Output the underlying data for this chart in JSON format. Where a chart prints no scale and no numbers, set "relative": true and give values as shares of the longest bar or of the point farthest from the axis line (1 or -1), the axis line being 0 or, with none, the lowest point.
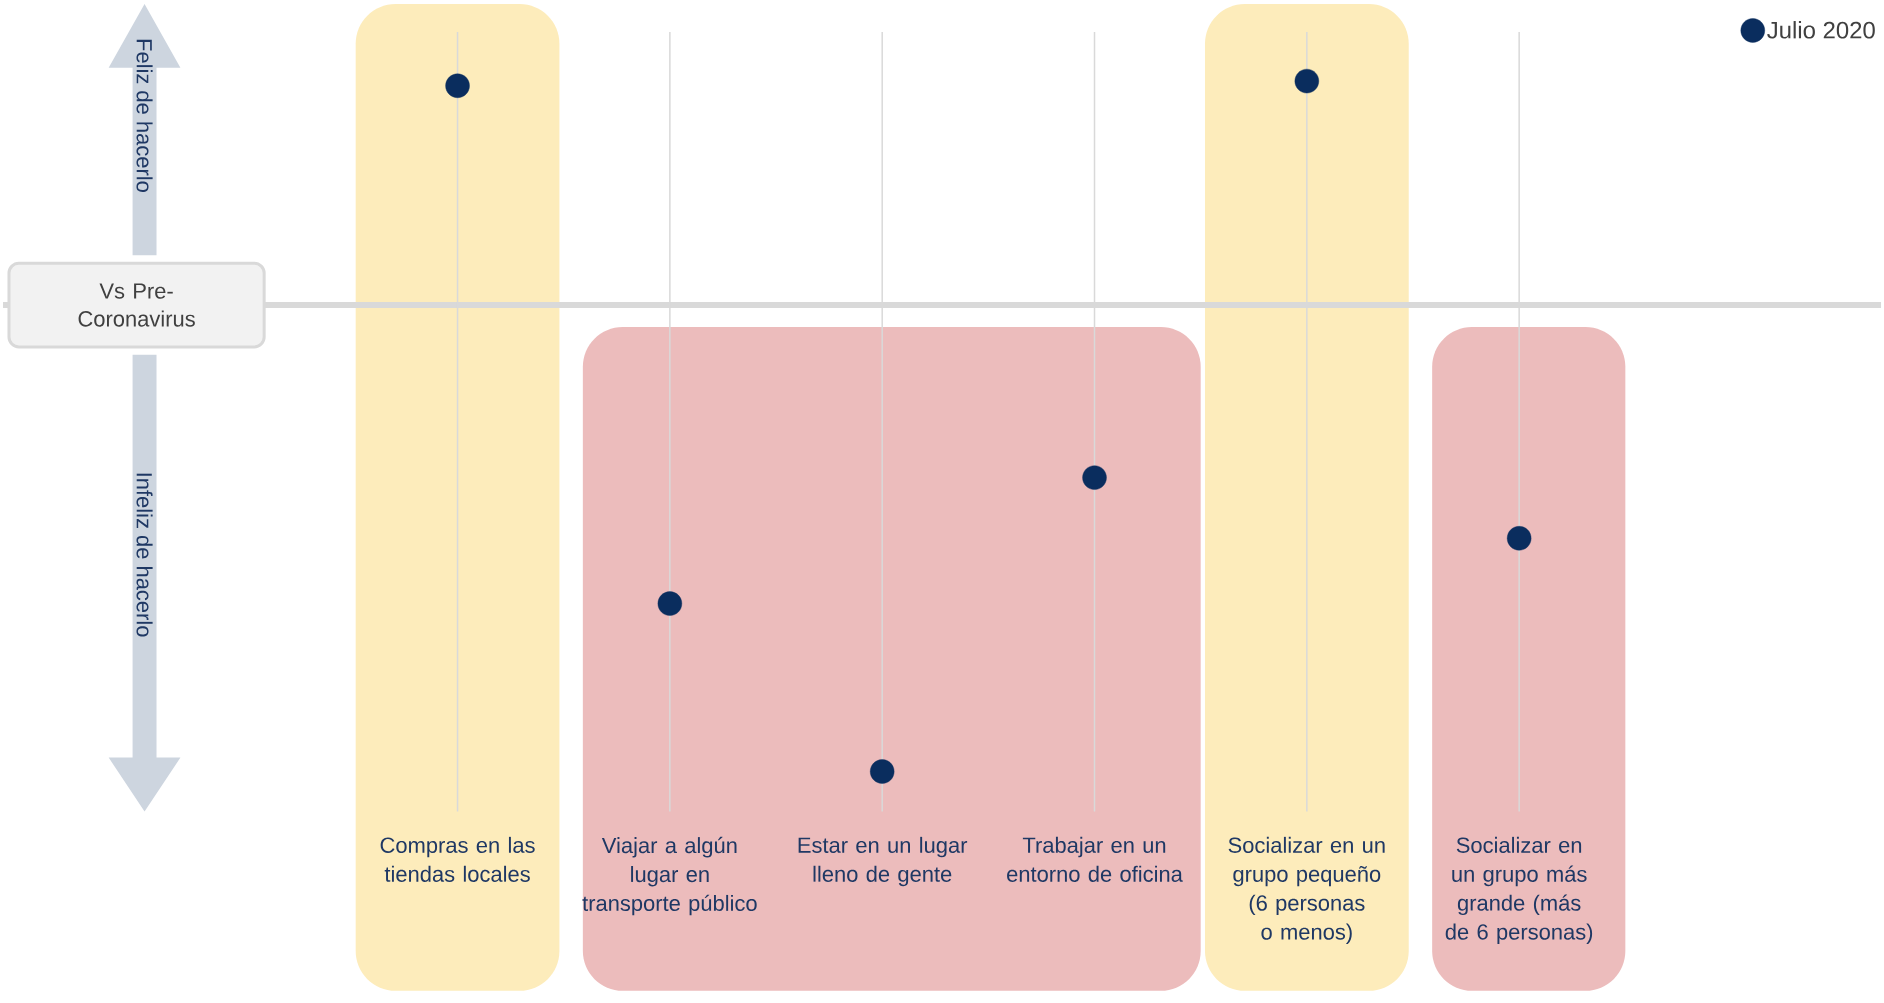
{
  "chart_data": {
    "type": "scatter",
    "relative": true,
    "categories": [
      "Compras en las tiendas locales",
      "Viajar a algún lugar en transporte público",
      "Estar en un lugar lleno de gente",
      "Trabajar en un entorno de oficina",
      "Socializar en un grupo pequeño (6 personas o menos)",
      "Socializar en un grupo más grande (más de 6 personas)"
    ],
    "series": [
      {
        "name": "Julio 2020",
        "color": "#0a2d5e",
        "values": [
          0.47,
          -0.64,
          -1,
          -0.37,
          0.48,
          -0.5
        ]
      }
    ],
    "marker": "circle",
    "grid": "x",
    "legend": "top right",
    "ref_lines": [
      {
        "axis": "y",
        "value": 0,
        "label": "Vs Pre-Coronavirus",
        "color": "#d9d9d9"
      }
    ],
    "annotations": [
      "Feliz de hacerlo",
      "Infeliz de hacerlo"
    ]
  }
}
